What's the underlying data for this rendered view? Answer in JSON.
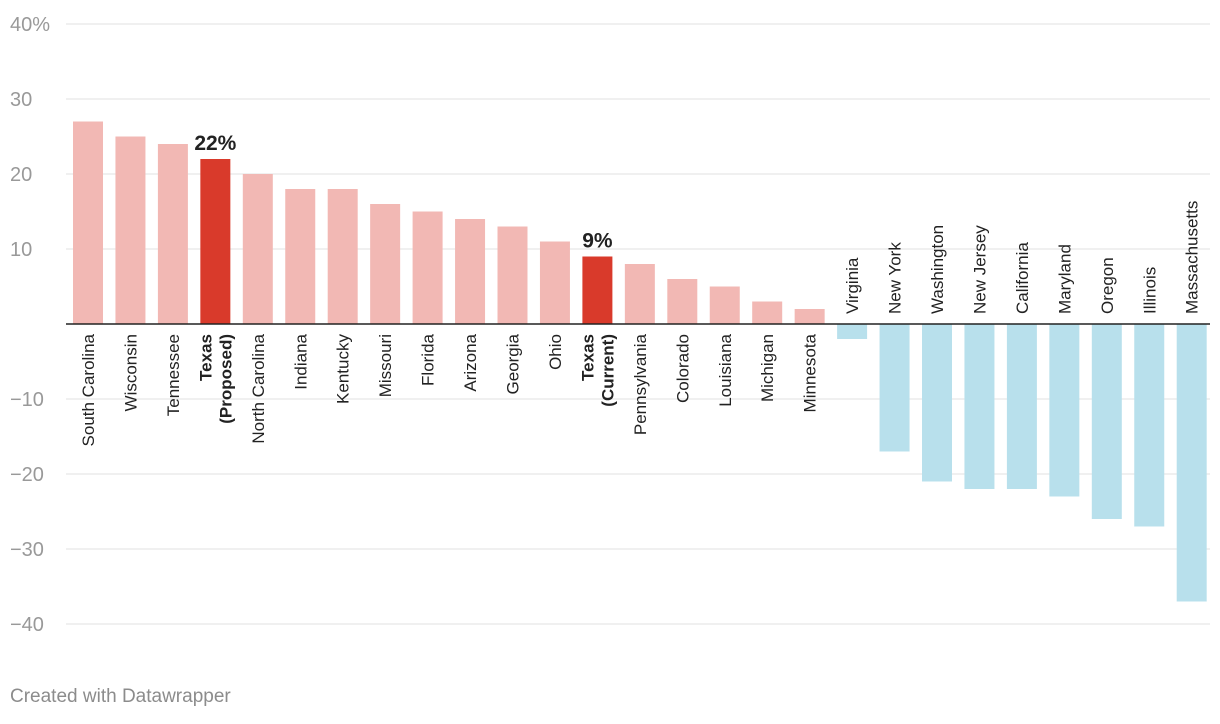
{
  "chart_data": {
    "type": "bar",
    "title": "",
    "xlabel": "",
    "ylabel": "",
    "ylim": [
      -40,
      40
    ],
    "y_ticks": [
      "40%",
      "30",
      "20",
      "10",
      "−10",
      "−20",
      "−30",
      "−40"
    ],
    "y_tick_values": [
      40,
      30,
      20,
      10,
      -10,
      -20,
      -30,
      -40
    ],
    "categories": [
      {
        "label": "South Carolina",
        "value": 27,
        "highlight": false
      },
      {
        "label": "Wisconsin",
        "value": 25,
        "highlight": false
      },
      {
        "label": "Tennessee",
        "value": 24,
        "highlight": false
      },
      {
        "label": "Texas (Proposed)",
        "line1": "Texas",
        "line2": "(Proposed)",
        "value": 22,
        "highlight": true,
        "data_label": "22%"
      },
      {
        "label": "North Carolina",
        "value": 20,
        "highlight": false
      },
      {
        "label": "Indiana",
        "value": 18,
        "highlight": false
      },
      {
        "label": "Kentucky",
        "value": 18,
        "highlight": false
      },
      {
        "label": "Missouri",
        "value": 16,
        "highlight": false
      },
      {
        "label": "Florida",
        "value": 15,
        "highlight": false
      },
      {
        "label": "Arizona",
        "value": 14,
        "highlight": false
      },
      {
        "label": "Georgia",
        "value": 13,
        "highlight": false
      },
      {
        "label": "Ohio",
        "value": 11,
        "highlight": false
      },
      {
        "label": "Texas (Current)",
        "line1": "Texas",
        "line2": "(Current)",
        "value": 9,
        "highlight": true,
        "data_label": "9%"
      },
      {
        "label": "Pennsylvania",
        "value": 8,
        "highlight": false
      },
      {
        "label": "Colorado",
        "value": 6,
        "highlight": false
      },
      {
        "label": "Louisiana",
        "value": 5,
        "highlight": false
      },
      {
        "label": "Michigan",
        "value": 3,
        "highlight": false
      },
      {
        "label": "Minnesota",
        "value": 2,
        "highlight": false
      },
      {
        "label": "Virginia",
        "value": -2,
        "highlight": false
      },
      {
        "label": "New York",
        "value": -17,
        "highlight": false
      },
      {
        "label": "Washington",
        "value": -21,
        "highlight": false
      },
      {
        "label": "New Jersey",
        "value": -22,
        "highlight": false
      },
      {
        "label": "California",
        "value": -22,
        "highlight": false
      },
      {
        "label": "Maryland",
        "value": -23,
        "highlight": false
      },
      {
        "label": "Oregon",
        "value": -26,
        "highlight": false
      },
      {
        "label": "Illinois",
        "value": -27,
        "highlight": false
      },
      {
        "label": "Massachusetts",
        "value": -37,
        "highlight": false
      }
    ],
    "colors": {
      "positive": "#f2b8b4",
      "highlight": "#d93a2b",
      "negative": "#b8e0ec",
      "grid": "#e2e2e2",
      "baseline": "#222222",
      "tick_text": "#999999",
      "label_text": "#222222"
    }
  },
  "footer": {
    "credit": "Created with Datawrapper"
  }
}
